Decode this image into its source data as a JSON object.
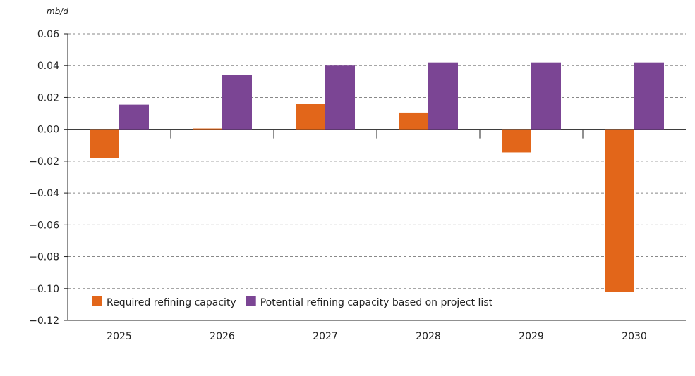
{
  "chart_data": {
    "type": "bar",
    "ylabel": "mb/d",
    "categories": [
      "2025",
      "2026",
      "2027",
      "2028",
      "2029",
      "2030"
    ],
    "series": [
      {
        "name": "Required refining capacity",
        "color": "#E2661A",
        "values": [
          -0.018,
          0.0005,
          0.016,
          0.0105,
          -0.0145,
          -0.102
        ]
      },
      {
        "name": "Potential refining capacity based on project list",
        "color": "#7B4594",
        "values": [
          0.0155,
          0.034,
          0.04,
          0.042,
          0.042,
          0.042
        ]
      }
    ],
    "ylim": [
      -0.12,
      0.06
    ],
    "yticks": [
      "0.06",
      "0.04",
      "0.02",
      "0.00",
      "−0.02",
      "−0.04",
      "−0.06",
      "−0.08",
      "−0.10",
      "−0.12"
    ],
    "grid": true,
    "legend_position": "bottom-left"
  }
}
